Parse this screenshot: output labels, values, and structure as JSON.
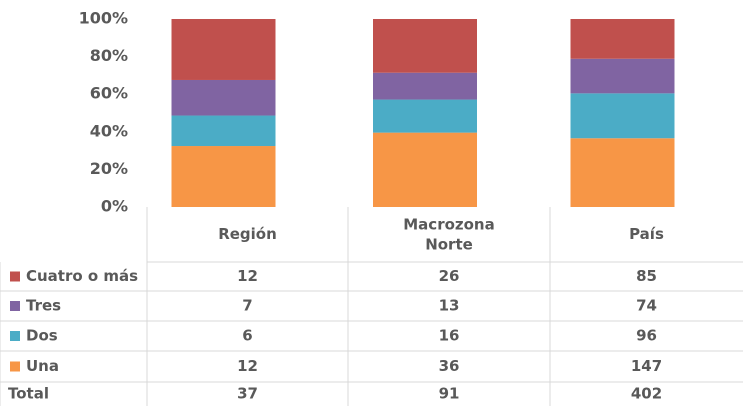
{
  "chart_data": {
    "type": "bar",
    "stacked": "percent",
    "categories": [
      "Región",
      "Macrozona Norte",
      "País"
    ],
    "series": [
      {
        "name": "Cuatro o más",
        "color": "#c0504d",
        "values": [
          12,
          26,
          85
        ]
      },
      {
        "name": "Tres",
        "color": "#8064a2",
        "values": [
          7,
          13,
          74
        ]
      },
      {
        "name": "Dos",
        "color": "#4bacc6",
        "values": [
          6,
          16,
          96
        ]
      },
      {
        "name": "Una",
        "color": "#f79646",
        "values": [
          12,
          36,
          147
        ]
      }
    ],
    "total_label": "Total",
    "totals": [
      37,
      91,
      402
    ],
    "ylim": [
      0,
      100
    ],
    "yticks": [
      {
        "value": 0,
        "label": "0%"
      },
      {
        "value": 20,
        "label": "20%"
      },
      {
        "value": 40,
        "label": "40%"
      },
      {
        "value": 60,
        "label": "60%"
      },
      {
        "value": 80,
        "label": "80%"
      },
      {
        "value": 100,
        "label": "100%"
      }
    ],
    "grid": false
  }
}
